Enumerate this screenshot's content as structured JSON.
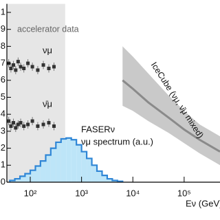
{
  "chart_data": {
    "type": "line",
    "x_label": "Eν (GeV)",
    "xscale": "log",
    "xlim": [
      35,
      500000
    ],
    "xticks": [
      {
        "value": 100,
        "label": "10²"
      },
      {
        "value": 1000,
        "label": "10³"
      },
      {
        "value": 10000,
        "label": "10⁴"
      },
      {
        "value": 100000,
        "label": "10⁵"
      }
    ],
    "ylim": [
      0,
      1.05
    ],
    "yticks": [
      0,
      0.1,
      0.2,
      0.3,
      0.4,
      0.5,
      0.6,
      0.7,
      0.8,
      0.9,
      1
    ],
    "region": {
      "label": "accelerator data",
      "xlim": [
        35,
        480
      ],
      "color": "#e6e6e6"
    },
    "series": [
      {
        "name": "νμ",
        "color": "#333333",
        "x": [
          38,
          42,
          47,
          52,
          58,
          65,
          75,
          90,
          110,
          140,
          180,
          230,
          290
        ],
        "values": [
          0.7,
          0.67,
          0.69,
          0.66,
          0.71,
          0.68,
          0.67,
          0.7,
          0.68,
          0.66,
          0.69,
          0.67,
          0.68
        ]
      },
      {
        "name": "ν̄μ",
        "color": "#333333",
        "x": [
          38,
          42,
          47,
          52,
          58,
          65,
          75,
          90,
          110,
          140,
          180,
          230,
          290
        ],
        "values": [
          0.36,
          0.33,
          0.35,
          0.32,
          0.34,
          0.35,
          0.33,
          0.34,
          0.36,
          0.33,
          0.34,
          0.35,
          0.33
        ]
      },
      {
        "name": "FASERν",
        "subtitle": "νμ spectrum (a.u.)",
        "color": "#2f86d6",
        "fill": "#bde5f8",
        "bins": [
          40,
          50,
          63,
          79,
          100,
          126,
          158,
          200,
          251,
          316,
          398,
          501,
          631,
          794,
          1000,
          1259,
          1585,
          1995,
          2512,
          3162,
          3981,
          5012,
          6310
        ],
        "values": [
          0.01,
          0.02,
          0.035,
          0.05,
          0.07,
          0.095,
          0.125,
          0.16,
          0.2,
          0.235,
          0.255,
          0.26,
          0.25,
          0.22,
          0.18,
          0.14,
          0.1,
          0.065,
          0.04,
          0.02,
          0.01,
          0.005
        ]
      },
      {
        "name": "IceCube (νμ, ν̄μ mixed)",
        "color": "#8a8a8a",
        "fill": "#c9c9c9",
        "x": [
          6300,
          10000,
          20000,
          50000,
          100000,
          200000,
          500000
        ],
        "values": [
          0.6,
          0.55,
          0.47,
          0.38,
          0.31,
          0.25,
          0.18
        ],
        "lower": [
          0.45,
          0.42,
          0.36,
          0.29,
          0.23,
          0.17,
          0.1
        ],
        "upper": [
          0.8,
          0.74,
          0.64,
          0.51,
          0.42,
          0.34,
          0.27
        ]
      }
    ]
  }
}
